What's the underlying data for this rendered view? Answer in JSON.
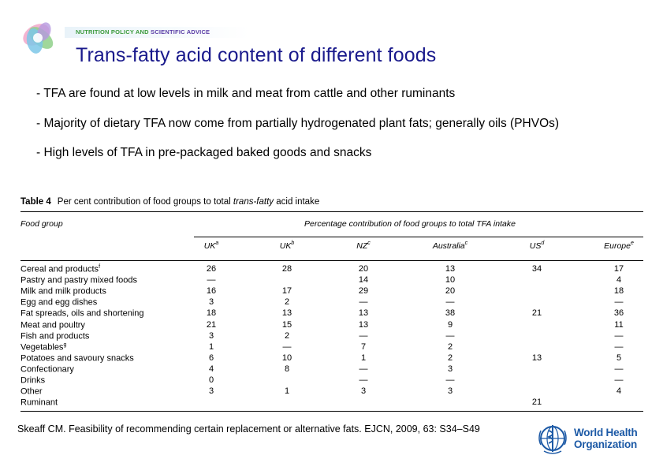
{
  "header": {
    "banner_part1": "NUTRITION POLICY AND ",
    "banner_part2": "SCIENTIFIC ADVICE",
    "title": "Trans-fatty acid content of different foods"
  },
  "bullets": [
    "- TFA are found at low levels in milk and meat from cattle and other ruminants",
    "- Majority of dietary TFA now come from partially hydrogenated plant fats; generally oils (PHVOs)",
    "- High levels of TFA in pre-packaged baked goods and snacks"
  ],
  "table": {
    "label": "Table 4",
    "caption_pre": "Per cent contribution of food groups to total ",
    "caption_italic": "trans-fatty",
    "caption_post": " acid intake",
    "food_group_header": "Food group",
    "span_header": "Percentage contribution of food groups to total TFA intake",
    "columns": [
      {
        "name": "UK",
        "sup": "a"
      },
      {
        "name": "UK",
        "sup": "b"
      },
      {
        "name": "NZ",
        "sup": "c"
      },
      {
        "name": "Australia",
        "sup": "c"
      },
      {
        "name": "US",
        "sup": "d"
      },
      {
        "name": "Europe",
        "sup": "e"
      }
    ],
    "rows": [
      {
        "label": "Cereal and products",
        "sup": "f",
        "values": [
          "26",
          "28",
          "20",
          "13",
          "34",
          "17"
        ]
      },
      {
        "label": "Pastry and pastry mixed foods",
        "sup": "",
        "values": [
          "—",
          "",
          "14",
          "10",
          "",
          "4"
        ]
      },
      {
        "label": "Milk and milk products",
        "sup": "",
        "values": [
          "16",
          "17",
          "29",
          "20",
          "",
          "18"
        ]
      },
      {
        "label": "Egg and egg dishes",
        "sup": "",
        "values": [
          "3",
          "2",
          "—",
          "—",
          "",
          "—"
        ]
      },
      {
        "label": "Fat spreads, oils and shortening",
        "sup": "",
        "values": [
          "18",
          "13",
          "13",
          "38",
          "21",
          "36"
        ]
      },
      {
        "label": "Meat and poultry",
        "sup": "",
        "values": [
          "21",
          "15",
          "13",
          "9",
          "",
          "11"
        ]
      },
      {
        "label": "Fish and products",
        "sup": "",
        "values": [
          "3",
          "2",
          "—",
          "—",
          "",
          "—"
        ]
      },
      {
        "label": "Vegetables",
        "sup": "g",
        "values": [
          "1",
          "—",
          "7",
          "2",
          "",
          "—"
        ]
      },
      {
        "label": "Potatoes and savoury snacks",
        "sup": "",
        "values": [
          "6",
          "10",
          "1",
          "2",
          "13",
          "5"
        ]
      },
      {
        "label": "Confectionary",
        "sup": "",
        "values": [
          "4",
          "8",
          "—",
          "3",
          "",
          "—"
        ]
      },
      {
        "label": "Drinks",
        "sup": "",
        "values": [
          "0",
          "",
          "—",
          "—",
          "",
          "—"
        ]
      },
      {
        "label": "Other",
        "sup": "",
        "values": [
          "3",
          "1",
          "3",
          "3",
          "",
          "4"
        ]
      },
      {
        "label": "Ruminant",
        "sup": "",
        "values": [
          "",
          "",
          "",
          "",
          "21",
          ""
        ]
      }
    ]
  },
  "citation": "Skeaff CM. Feasibility of recommending certain replacement or alternative fats. EJCN, 2009, 63: S34–S49",
  "who_logo": {
    "line1": "World Health",
    "line2": "Organization",
    "emblem": "who-emblem-icon"
  },
  "logo": {
    "icon": "colorful-swirl-logo-icon"
  },
  "colors": {
    "title": "#1a1a8c",
    "who_blue": "#1d5aa6"
  }
}
